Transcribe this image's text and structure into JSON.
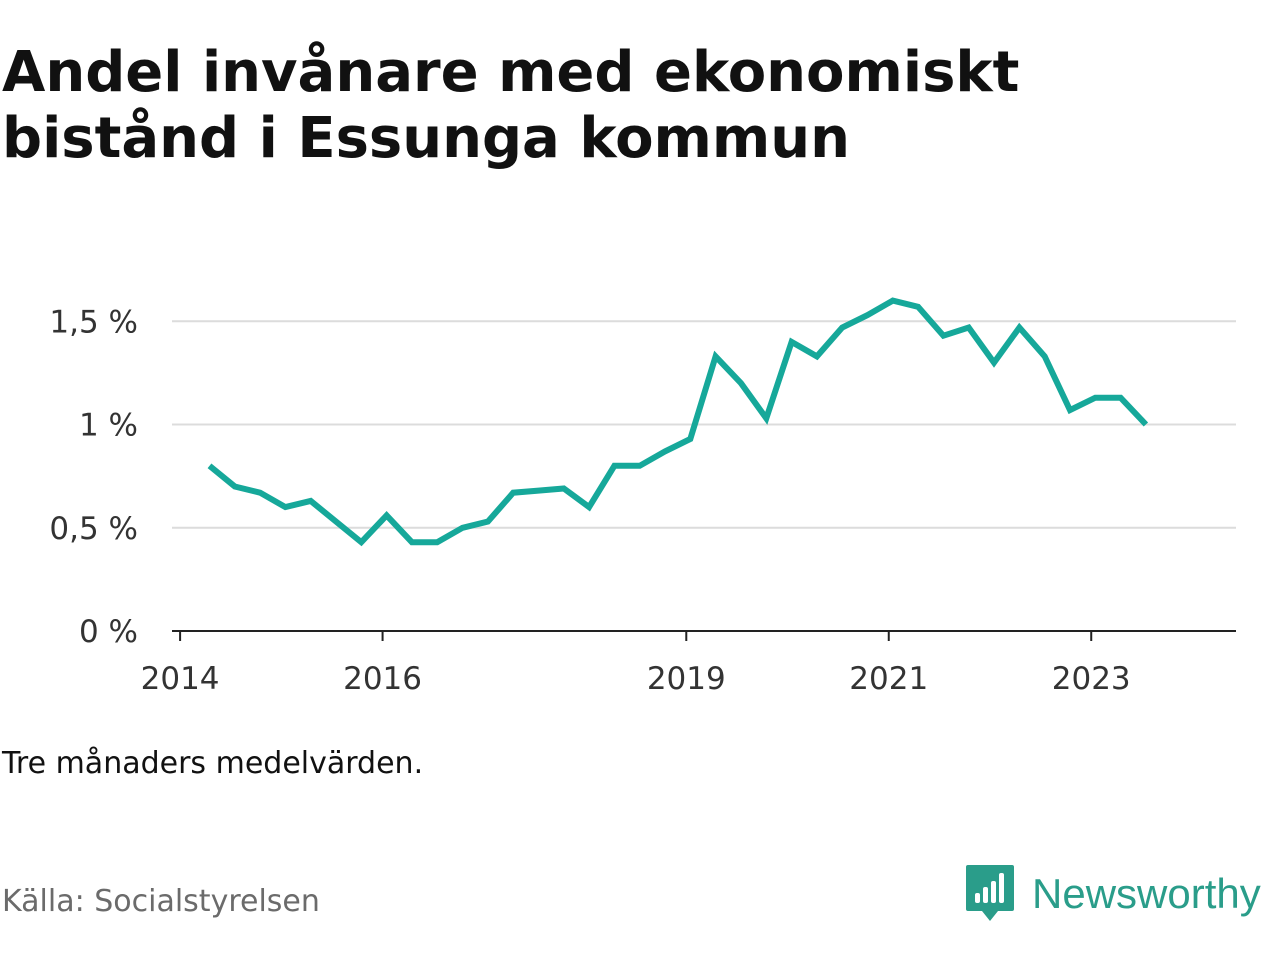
{
  "title": {
    "line1": "Andel invånare med ekonomiskt",
    "line2": "bistånd i Essunga kommun"
  },
  "note": "Tre månaders medelvärden.",
  "source": "Källa: Socialstyrelsen",
  "brand": {
    "name": "Newsworthy",
    "icon": "newsworthy-logo-icon",
    "color": "#2a9d8a"
  },
  "colors": {
    "line": "#16a89a",
    "grid": "#dcdcdc",
    "axis": "#222222"
  },
  "chart_data": {
    "type": "line",
    "title": "Andel invånare med ekonomiskt bistånd i Essunga kommun",
    "xlabel": "",
    "ylabel": "",
    "x_ticks": [
      2014,
      2016,
      2019,
      2021,
      2023
    ],
    "y_ticks": [
      {
        "value": 0,
        "label": "0 %"
      },
      {
        "value": 0.5,
        "label": "0,5 %"
      },
      {
        "value": 1,
        "label": "1 %"
      },
      {
        "value": 1.5,
        "label": "1,5 %"
      }
    ],
    "xlim": [
      2013.92,
      2024.43
    ],
    "ylim": [
      0,
      1.7
    ],
    "grid": true,
    "series": [
      {
        "x": [
          2014.29,
          2014.54,
          2014.79,
          2015.04,
          2015.29,
          2015.54,
          2015.79,
          2016.04,
          2016.29,
          2016.54,
          2016.79,
          2017.04,
          2017.29,
          2017.54,
          2017.79,
          2018.04,
          2018.29,
          2018.54,
          2018.79,
          2019.04,
          2019.29,
          2019.54,
          2019.79,
          2020.04,
          2020.29,
          2020.54,
          2020.79,
          2021.04,
          2021.29,
          2021.54,
          2021.79,
          2022.04,
          2022.29,
          2022.54,
          2022.79,
          2023.04,
          2023.29,
          2023.54
        ],
        "values": [
          0.8,
          0.7,
          0.67,
          0.6,
          0.63,
          0.53,
          0.43,
          0.56,
          0.43,
          0.43,
          0.5,
          0.53,
          0.67,
          0.68,
          0.69,
          0.6,
          0.8,
          0.8,
          0.87,
          0.93,
          1.33,
          1.2,
          1.03,
          1.4,
          1.33,
          1.47,
          1.53,
          1.6,
          1.57,
          1.43,
          1.47,
          1.3,
          1.47,
          1.33,
          1.07,
          1.13,
          1.13,
          1.0
        ]
      }
    ]
  }
}
